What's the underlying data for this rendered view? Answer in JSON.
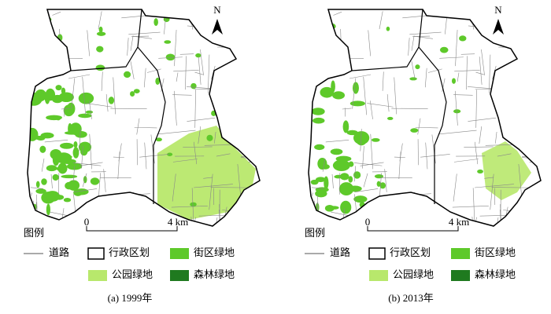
{
  "panels": [
    {
      "caption": "(a) 1999年",
      "north": "N",
      "scale": {
        "start": "0",
        "end": "4 km"
      },
      "legend": {
        "title": "图例",
        "items": [
          "道路",
          "行政区划",
          "街区绿地",
          "公园绿地",
          "森林绿地"
        ]
      }
    },
    {
      "caption": "(b) 2013年",
      "north": "N",
      "scale": {
        "start": "0",
        "end": "4 km"
      },
      "legend": {
        "title": "图例",
        "items": [
          "道路",
          "行政区划",
          "街区绿地",
          "公园绿地",
          "森林绿地"
        ]
      }
    }
  ]
}
